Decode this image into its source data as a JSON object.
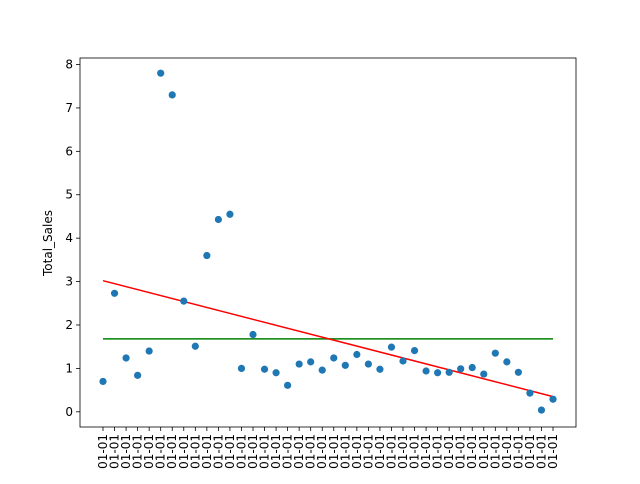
{
  "chart_data": {
    "type": "scatter",
    "ylabel": "Total_Sales",
    "x_tick_label": "01-01",
    "y_ticks": [
      0,
      1,
      2,
      3,
      4,
      5,
      6,
      7,
      8
    ],
    "ylim": [
      -0.35,
      8.15
    ],
    "series": [
      {
        "values": [
          0.7,
          2.73,
          1.24,
          0.84,
          1.4,
          7.8,
          7.3,
          2.55,
          1.51,
          3.6,
          4.43,
          4.55,
          1.0,
          1.78,
          0.98,
          0.9,
          0.61,
          1.1,
          1.15,
          0.96,
          1.24,
          1.07,
          1.32,
          1.1,
          0.98,
          1.49,
          1.17,
          1.41,
          0.94,
          0.9,
          0.91,
          0.99,
          1.02,
          0.87,
          1.35,
          1.15,
          0.91,
          0.43,
          0.04,
          0.29
        ],
        "color": "#1f77b4"
      }
    ],
    "mean_line": {
      "value": 1.68,
      "color": "#008000"
    },
    "trend_line": {
      "start": 3.02,
      "end": 0.35,
      "color": "#ff0000"
    }
  }
}
